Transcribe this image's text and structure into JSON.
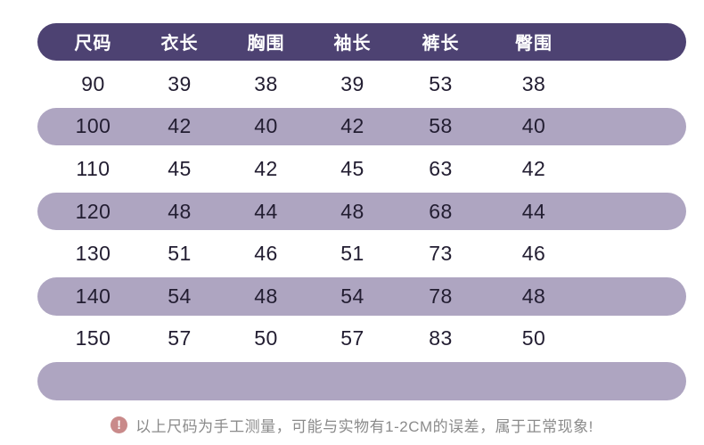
{
  "colors": {
    "header_bg": "#4d4272",
    "band_bg": "#aea5c1",
    "header_text": "#ffffff",
    "text_dark": "#221d31",
    "note_text": "#8b8b8b",
    "note_icon_bg": "#c98a8a"
  },
  "chart_data": {
    "type": "table",
    "title": "",
    "columns": [
      "尺码",
      "衣长",
      "胸围",
      "袖长",
      "裤长",
      "臀围"
    ],
    "rows": [
      [
        "90",
        "39",
        "38",
        "39",
        "53",
        "38"
      ],
      [
        "100",
        "42",
        "40",
        "42",
        "58",
        "40"
      ],
      [
        "110",
        "45",
        "42",
        "45",
        "63",
        "42"
      ],
      [
        "120",
        "48",
        "44",
        "48",
        "68",
        "44"
      ],
      [
        "130",
        "51",
        "46",
        "51",
        "73",
        "46"
      ],
      [
        "140",
        "54",
        "48",
        "54",
        "78",
        "48"
      ],
      [
        "150",
        "57",
        "50",
        "57",
        "83",
        "50"
      ]
    ],
    "layout_hints": {
      "header_style": "dark-purple pill",
      "zebra_style": "lavender pill on even data rows",
      "trailing_empty_band": true
    }
  },
  "footer": {
    "icon": "exclamation-circle-icon",
    "icon_glyph": "!",
    "note": "以上尺码为手工测量，可能与实物有1-2CM的误差，属于正常现象!"
  }
}
